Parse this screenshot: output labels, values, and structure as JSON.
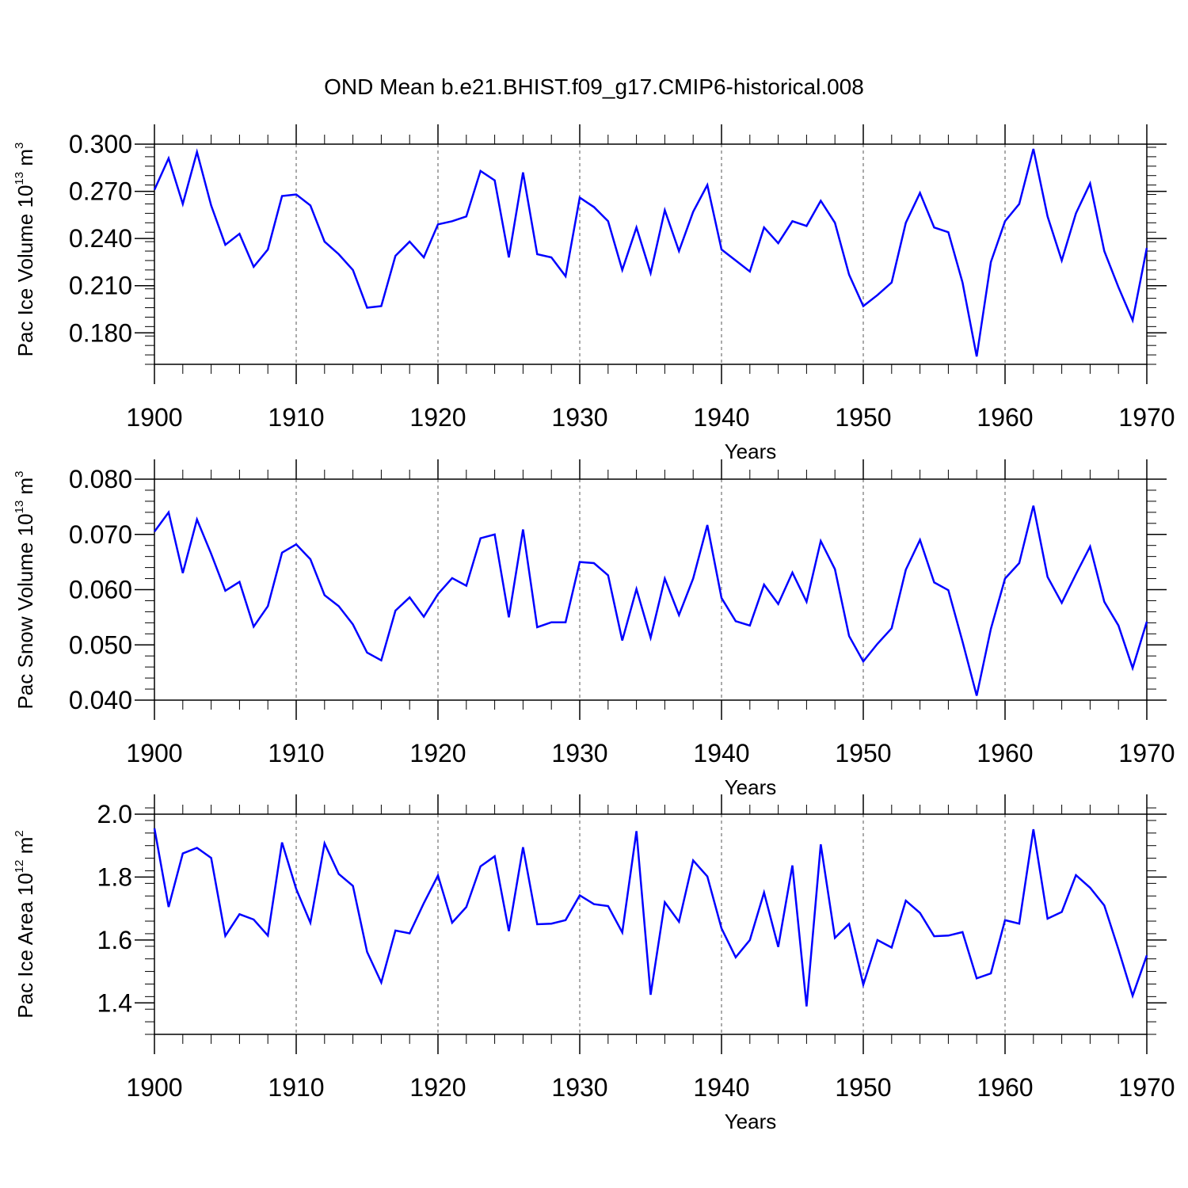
{
  "title": "OND Mean b.e21.BHIST.f09_g17.CMIP6-historical.008",
  "colors": {
    "line": "#0000ff",
    "axes": "#000000",
    "grid": "#555555",
    "background": "#ffffff"
  },
  "chart_data": [
    {
      "type": "line",
      "xlabel": "Years",
      "ylabel": {
        "prefix": "Pac Ice Volume 10",
        "exponent": "13",
        "unit": " m",
        "unit_exponent": "3"
      },
      "xlim": [
        1900,
        1970
      ],
      "ylim": [
        0.16,
        0.3
      ],
      "xticks": [
        1900,
        1910,
        1920,
        1930,
        1940,
        1950,
        1960,
        1970
      ],
      "xtick_labels": [
        "1900",
        "1910",
        "1920",
        "1930",
        "1940",
        "1950",
        "1960",
        "1970"
      ],
      "yticks": [
        0.18,
        0.21,
        0.24,
        0.27,
        0.3
      ],
      "ytick_labels": [
        "0.180",
        "0.210",
        "0.240",
        "0.270",
        "0.300"
      ],
      "y_minor_step": 0.006,
      "grid": "vertical dashed at major x ticks",
      "x": [
        1900,
        1901,
        1902,
        1903,
        1904,
        1905,
        1906,
        1907,
        1908,
        1909,
        1910,
        1911,
        1912,
        1913,
        1914,
        1915,
        1916,
        1917,
        1918,
        1919,
        1920,
        1921,
        1922,
        1923,
        1924,
        1925,
        1926,
        1927,
        1928,
        1929,
        1930,
        1931,
        1932,
        1933,
        1934,
        1935,
        1936,
        1937,
        1938,
        1939,
        1940,
        1941,
        1942,
        1943,
        1944,
        1945,
        1946,
        1947,
        1948,
        1949,
        1950,
        1951,
        1952,
        1953,
        1954,
        1955,
        1956,
        1957,
        1958,
        1959,
        1960,
        1961,
        1962,
        1963,
        1964,
        1965,
        1966,
        1967,
        1968,
        1969,
        1970
      ],
      "series": [
        {
          "name": "Pac Ice Volume",
          "values": [
            0.271,
            0.291,
            0.262,
            0.295,
            0.261,
            0.236,
            0.243,
            0.222,
            0.233,
            0.267,
            0.268,
            0.261,
            0.238,
            0.23,
            0.22,
            0.196,
            0.197,
            0.229,
            0.238,
            0.228,
            0.249,
            0.251,
            0.254,
            0.283,
            0.277,
            0.228,
            0.282,
            0.23,
            0.228,
            0.216,
            0.266,
            0.26,
            0.251,
            0.22,
            0.247,
            0.218,
            0.258,
            0.232,
            0.257,
            0.274,
            0.233,
            0.226,
            0.219,
            0.247,
            0.237,
            0.251,
            0.248,
            0.264,
            0.25,
            0.217,
            0.197,
            0.204,
            0.212,
            0.25,
            0.269,
            0.247,
            0.244,
            0.212,
            0.165,
            0.225,
            0.251,
            0.262,
            0.297,
            0.254,
            0.226,
            0.256,
            0.275,
            0.232,
            0.209,
            0.188,
            0.234
          ]
        }
      ]
    },
    {
      "type": "line",
      "xlabel": "Years",
      "ylabel": {
        "prefix": "Pac Snow Volume 10",
        "exponent": "13",
        "unit": " m",
        "unit_exponent": "3"
      },
      "xlim": [
        1900,
        1970
      ],
      "ylim": [
        0.04,
        0.08
      ],
      "xticks": [
        1900,
        1910,
        1920,
        1930,
        1940,
        1950,
        1960,
        1970
      ],
      "xtick_labels": [
        "1900",
        "1910",
        "1920",
        "1930",
        "1940",
        "1950",
        "1960",
        "1970"
      ],
      "yticks": [
        0.04,
        0.05,
        0.06,
        0.07,
        0.08
      ],
      "ytick_labels": [
        "0.040",
        "0.050",
        "0.060",
        "0.070",
        "0.080"
      ],
      "y_minor_step": 0.002,
      "grid": "vertical dashed at major x ticks",
      "x": [
        1900,
        1901,
        1902,
        1903,
        1904,
        1905,
        1906,
        1907,
        1908,
        1909,
        1910,
        1911,
        1912,
        1913,
        1914,
        1915,
        1916,
        1917,
        1918,
        1919,
        1920,
        1921,
        1922,
        1923,
        1924,
        1925,
        1926,
        1927,
        1928,
        1929,
        1930,
        1931,
        1932,
        1933,
        1934,
        1935,
        1936,
        1937,
        1938,
        1939,
        1940,
        1941,
        1942,
        1943,
        1944,
        1945,
        1946,
        1947,
        1948,
        1949,
        1950,
        1951,
        1952,
        1953,
        1954,
        1955,
        1956,
        1957,
        1958,
        1959,
        1960,
        1961,
        1962,
        1963,
        1964,
        1965,
        1966,
        1967,
        1968,
        1969,
        1970
      ],
      "series": [
        {
          "name": "Pac Snow Volume",
          "values": [
            0.0705,
            0.074,
            0.063,
            0.0727,
            0.0665,
            0.0598,
            0.0614,
            0.0533,
            0.057,
            0.0667,
            0.0682,
            0.0655,
            0.059,
            0.057,
            0.0537,
            0.0486,
            0.0472,
            0.0562,
            0.0586,
            0.0551,
            0.0592,
            0.0621,
            0.0607,
            0.0693,
            0.07,
            0.055,
            0.0709,
            0.0532,
            0.0541,
            0.0541,
            0.065,
            0.0648,
            0.0626,
            0.0508,
            0.0601,
            0.0513,
            0.062,
            0.0554,
            0.062,
            0.0717,
            0.0585,
            0.0543,
            0.0535,
            0.0609,
            0.0574,
            0.0631,
            0.0578,
            0.0688,
            0.0637,
            0.0516,
            0.047,
            0.0502,
            0.053,
            0.0636,
            0.069,
            0.0613,
            0.0599,
            0.0506,
            0.0408,
            0.0529,
            0.062,
            0.0648,
            0.0752,
            0.0623,
            0.0576,
            0.0628,
            0.0678,
            0.0578,
            0.0535,
            0.0458,
            0.0542
          ]
        }
      ]
    },
    {
      "type": "line",
      "xlabel": "Years",
      "ylabel": {
        "prefix": "Pac Ice Area 10",
        "exponent": "12",
        "unit": " m",
        "unit_exponent": "2"
      },
      "xlim": [
        1900,
        1970
      ],
      "ylim": [
        1.3,
        2.0
      ],
      "xticks": [
        1900,
        1910,
        1920,
        1930,
        1940,
        1950,
        1960,
        1970
      ],
      "xtick_labels": [
        "1900",
        "1910",
        "1920",
        "1930",
        "1940",
        "1950",
        "1960",
        "1970"
      ],
      "yticks": [
        1.4,
        1.6,
        1.8,
        2.0
      ],
      "ytick_labels": [
        "1.4",
        "1.6",
        "1.8",
        "2.0"
      ],
      "y_minor_step": 0.04,
      "grid": "vertical dashed at major x ticks",
      "x": [
        1900,
        1901,
        1902,
        1903,
        1904,
        1905,
        1906,
        1907,
        1908,
        1909,
        1910,
        1911,
        1912,
        1913,
        1914,
        1915,
        1916,
        1917,
        1918,
        1919,
        1920,
        1921,
        1922,
        1923,
        1924,
        1925,
        1926,
        1927,
        1928,
        1929,
        1930,
        1931,
        1932,
        1933,
        1934,
        1935,
        1936,
        1937,
        1938,
        1939,
        1940,
        1941,
        1942,
        1943,
        1944,
        1945,
        1946,
        1947,
        1948,
        1949,
        1950,
        1951,
        1952,
        1953,
        1954,
        1955,
        1956,
        1957,
        1958,
        1959,
        1960,
        1961,
        1962,
        1963,
        1964,
        1965,
        1966,
        1967,
        1968,
        1969,
        1970
      ],
      "series": [
        {
          "name": "Pac Ice Area",
          "values": [
            1.955,
            1.705,
            1.875,
            1.893,
            1.861,
            1.613,
            1.682,
            1.665,
            1.614,
            1.91,
            1.762,
            1.655,
            1.907,
            1.81,
            1.772,
            1.562,
            1.465,
            1.63,
            1.621,
            1.717,
            1.805,
            1.655,
            1.705,
            1.834,
            1.866,
            1.628,
            1.895,
            1.65,
            1.652,
            1.663,
            1.742,
            1.714,
            1.708,
            1.624,
            1.946,
            1.426,
            1.72,
            1.658,
            1.853,
            1.802,
            1.637,
            1.545,
            1.6,
            1.751,
            1.578,
            1.837,
            1.389,
            1.904,
            1.607,
            1.651,
            1.458,
            1.6,
            1.576,
            1.725,
            1.686,
            1.612,
            1.614,
            1.625,
            1.478,
            1.494,
            1.663,
            1.652,
            1.952,
            1.668,
            1.689,
            1.806,
            1.766,
            1.71,
            1.57,
            1.423,
            1.551
          ]
        }
      ]
    }
  ]
}
